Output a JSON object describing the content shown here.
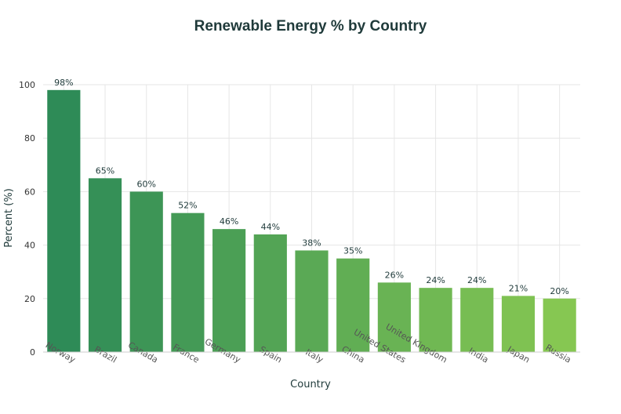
{
  "chart_data": {
    "type": "bar",
    "title": "Renewable Energy % by Country",
    "xlabel": "Country",
    "ylabel": "Percent (%)",
    "ylim": [
      0,
      100
    ],
    "yticks": [
      0,
      20,
      40,
      60,
      80,
      100
    ],
    "grid": true,
    "categories": [
      "Norway",
      "Brazil",
      "Canada",
      "France",
      "Germany",
      "Spain",
      "Italy",
      "China",
      "United States",
      "United Kingdom",
      "India",
      "Japan",
      "Russia"
    ],
    "values": [
      98,
      65,
      60,
      52,
      46,
      44,
      38,
      35,
      26,
      24,
      24,
      21,
      20
    ],
    "data_labels": [
      "98%",
      "65%",
      "60%",
      "52%",
      "46%",
      "44%",
      "38%",
      "35%",
      "26%",
      "24%",
      "24%",
      "21%",
      "20%"
    ],
    "color_start": "#2e8b57",
    "color_end": "#86c752"
  }
}
